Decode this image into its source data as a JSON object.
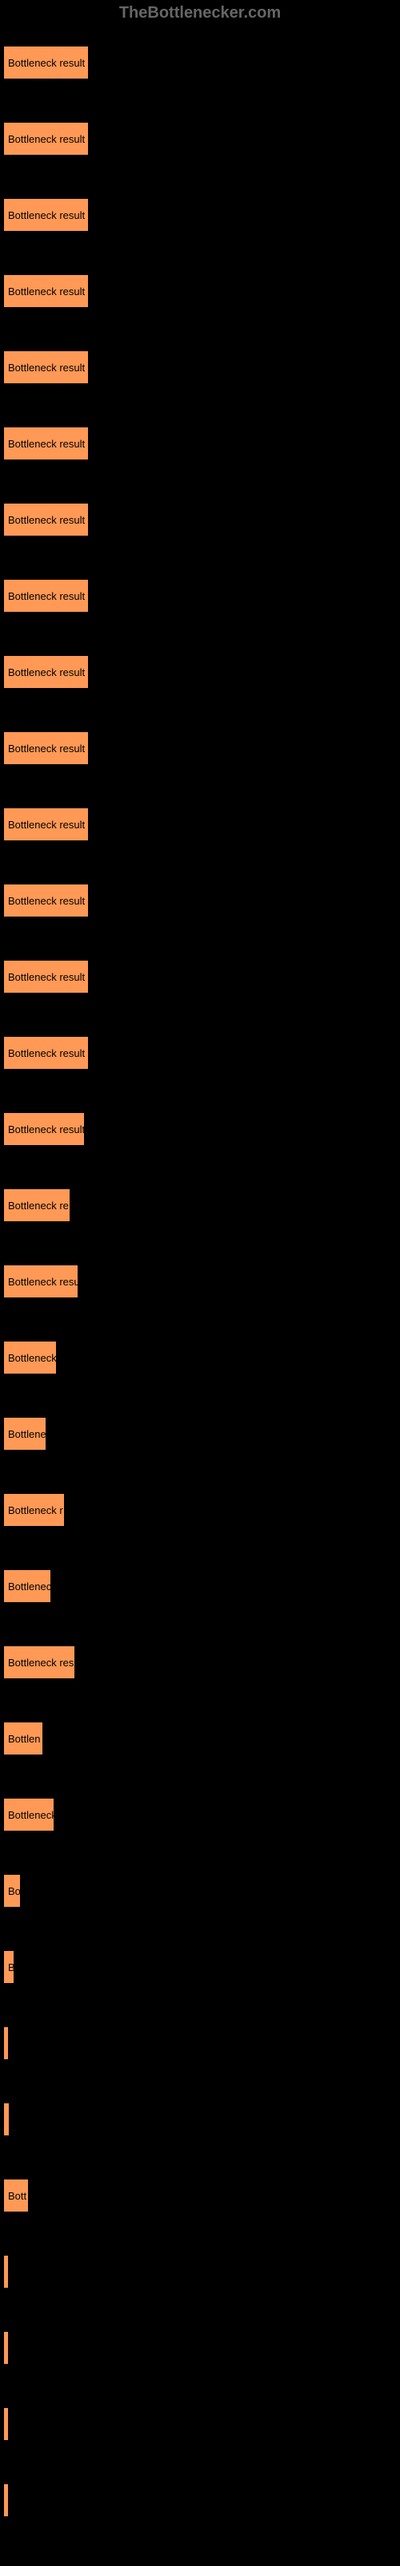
{
  "header": "TheBottlenecker.com",
  "chart": {
    "type": "bar",
    "bar_color": "#ff9955",
    "background_color": "#000000",
    "text_color": "#000000",
    "header_color": "#666666",
    "max_width": 105,
    "bars": [
      {
        "label": "Bottleneck result",
        "width": 105
      },
      {
        "label": "Bottleneck result",
        "width": 105
      },
      {
        "label": "Bottleneck result",
        "width": 105
      },
      {
        "label": "Bottleneck result",
        "width": 105
      },
      {
        "label": "Bottleneck result",
        "width": 105
      },
      {
        "label": "Bottleneck result",
        "width": 105
      },
      {
        "label": "Bottleneck result",
        "width": 105
      },
      {
        "label": "Bottleneck result",
        "width": 105
      },
      {
        "label": "Bottleneck result",
        "width": 105
      },
      {
        "label": "Bottleneck result",
        "width": 105
      },
      {
        "label": "Bottleneck result",
        "width": 105
      },
      {
        "label": "Bottleneck result",
        "width": 105
      },
      {
        "label": "Bottleneck result",
        "width": 105
      },
      {
        "label": "Bottleneck result",
        "width": 105
      },
      {
        "label": "Bottleneck result",
        "width": 100
      },
      {
        "label": "Bottleneck re",
        "width": 82
      },
      {
        "label": "Bottleneck resu",
        "width": 92
      },
      {
        "label": "Bottleneck",
        "width": 65
      },
      {
        "label": "Bottlene",
        "width": 52
      },
      {
        "label": "Bottleneck r",
        "width": 75
      },
      {
        "label": "Bottlenec",
        "width": 58
      },
      {
        "label": "Bottleneck res",
        "width": 88
      },
      {
        "label": "Bottlen",
        "width": 48
      },
      {
        "label": "Bottleneck",
        "width": 62
      },
      {
        "label": "Bo",
        "width": 20
      },
      {
        "label": "B",
        "width": 12
      },
      {
        "label": "",
        "width": 0
      },
      {
        "label": "",
        "width": 6
      },
      {
        "label": "Bott",
        "width": 30
      },
      {
        "label": "",
        "width": 0
      },
      {
        "label": "",
        "width": 0
      },
      {
        "label": "",
        "width": 0
      },
      {
        "label": "",
        "width": 0
      }
    ]
  }
}
